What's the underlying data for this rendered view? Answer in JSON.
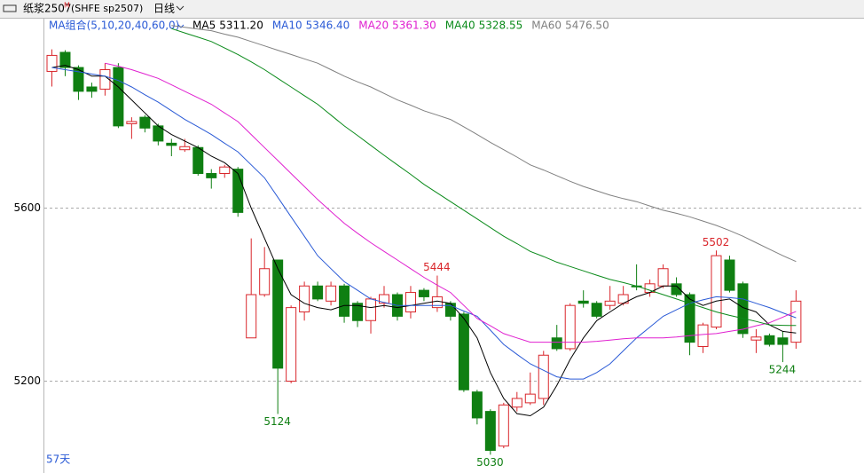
{
  "chart_data": {
    "type": "candlestick",
    "title": "纸浆2507",
    "title_mark": "M",
    "symbol": "(SHFE sp2507)",
    "period": "日线",
    "ma_group": "MA组合(5,10,20,40,60,0)",
    "days_label": "57天",
    "ylim": [
      5000,
      6040
    ],
    "yticks": [
      5200,
      5600
    ],
    "grid": true,
    "up_color": "#d9262b",
    "down_color": "#0f7f12",
    "open": [
      5916,
      5960,
      5925,
      5880,
      5875,
      5925,
      5795,
      5810,
      5790,
      5750,
      5735,
      5740,
      5680,
      5680,
      5690,
      5300,
      5400,
      5480,
      5200,
      5360,
      5420,
      5385,
      5420,
      5380,
      5340,
      5380,
      5400,
      5360,
      5410,
      5370,
      5380,
      5355,
      5175,
      5130,
      5050,
      5140,
      5150,
      5160,
      5300,
      5275,
      5385,
      5380,
      5375,
      5380,
      5420,
      5405,
      5420,
      5425,
      5400,
      5280,
      5325,
      5480,
      5425,
      5295,
      5305,
      5300,
      5290
    ],
    "high": [
      5967,
      5965,
      5930,
      5890,
      5935,
      5935,
      5810,
      5815,
      5795,
      5760,
      5760,
      5745,
      5690,
      5700,
      5695,
      5530,
      5510,
      5480,
      5375,
      5430,
      5430,
      5430,
      5425,
      5385,
      5395,
      5420,
      5405,
      5420,
      5415,
      5444,
      5385,
      5360,
      5180,
      5135,
      5150,
      5175,
      5220,
      5270,
      5330,
      5380,
      5410,
      5385,
      5420,
      5420,
      5470,
      5435,
      5470,
      5440,
      5405,
      5335,
      5502,
      5490,
      5430,
      5320,
      5310,
      5315,
      5410
    ],
    "low": [
      5881,
      5905,
      5850,
      5855,
      5860,
      5785,
      5760,
      5775,
      5745,
      5720,
      5730,
      5675,
      5645,
      5670,
      5580,
      5300,
      5395,
      5124,
      5195,
      5340,
      5385,
      5375,
      5335,
      5325,
      5310,
      5370,
      5340,
      5345,
      5385,
      5360,
      5340,
      5175,
      5100,
      5030,
      5045,
      5130,
      5145,
      5145,
      5270,
      5270,
      5370,
      5345,
      5365,
      5375,
      5410,
      5395,
      5415,
      5395,
      5260,
      5265,
      5320,
      5405,
      5300,
      5265,
      5280,
      5244,
      5275
    ],
    "close": [
      5953,
      5925,
      5870,
      5870,
      5920,
      5790,
      5800,
      5785,
      5755,
      5745,
      5742,
      5680,
      5670,
      5695,
      5590,
      5400,
      5460,
      5230,
      5370,
      5420,
      5390,
      5420,
      5350,
      5340,
      5390,
      5400,
      5350,
      5405,
      5395,
      5395,
      5350,
      5180,
      5115,
      5040,
      5145,
      5160,
      5170,
      5260,
      5275,
      5375,
      5380,
      5350,
      5385,
      5400,
      5418,
      5425,
      5460,
      5400,
      5290,
      5330,
      5490,
      5410,
      5310,
      5302,
      5285,
      5285,
      5385
    ],
    "high_labels": [
      29,
      50
    ],
    "low_labels": [
      17,
      33,
      55
    ],
    "series": [
      {
        "name": "MA5",
        "value_label": "5311.20",
        "color": "#000000",
        "values": [
          5925,
          5930,
          5920,
          5905,
          5905,
          5880,
          5850,
          5820,
          5790,
          5770,
          5755,
          5740,
          5720,
          5705,
          5680,
          5600,
          5530,
          5460,
          5400,
          5380,
          5370,
          5365,
          5375,
          5375,
          5370,
          5375,
          5370,
          5375,
          5380,
          5385,
          5380,
          5345,
          5300,
          5220,
          5160,
          5125,
          5120,
          5140,
          5190,
          5250,
          5300,
          5340,
          5360,
          5380,
          5395,
          5405,
          5420,
          5420,
          5390,
          5375,
          5385,
          5390,
          5370,
          5360,
          5330,
          5315,
          5311.2
        ]
      },
      {
        "name": "MA10",
        "value_label": "5346.40",
        "color": "#2a5ad6",
        "values": [
          5925,
          5920,
          5915,
          5910,
          5905,
          5895,
          5880,
          5862,
          5845,
          5825,
          5805,
          5788,
          5770,
          5750,
          5730,
          5700,
          5670,
          5625,
          5580,
          5535,
          5490,
          5460,
          5430,
          5410,
          5390,
          5382,
          5375,
          5375,
          5375,
          5375,
          5375,
          5362,
          5350,
          5318,
          5285,
          5262,
          5240,
          5225,
          5210,
          5205,
          5205,
          5220,
          5240,
          5270,
          5300,
          5325,
          5350,
          5365,
          5380,
          5388,
          5395,
          5393,
          5390,
          5380,
          5370,
          5358,
          5346.4
        ]
      },
      {
        "name": "MA20",
        "value_label": "5361.30",
        "color": "#e020d0",
        "values": [
          null,
          null,
          null,
          null,
          5935,
          5928,
          5920,
          5910,
          5900,
          5885,
          5870,
          5855,
          5840,
          5820,
          5800,
          5770,
          5740,
          5710,
          5680,
          5650,
          5620,
          5592,
          5565,
          5542,
          5520,
          5500,
          5480,
          5460,
          5440,
          5422,
          5405,
          5375,
          5345,
          5328,
          5310,
          5300,
          5290,
          5290,
          5290,
          5290,
          5290,
          5292,
          5295,
          5298,
          5300,
          5300,
          5300,
          5302,
          5305,
          5308,
          5310,
          5315,
          5320,
          5328,
          5335,
          5348,
          5361.3
        ]
      },
      {
        "name": "MA40",
        "value_label": "5328.55",
        "color": "#0a8a1a",
        "values": [
          null,
          null,
          null,
          null,
          null,
          null,
          null,
          null,
          null,
          6015,
          6005,
          5995,
          5985,
          5970,
          5955,
          5938,
          5920,
          5900,
          5880,
          5860,
          5840,
          5815,
          5790,
          5768,
          5745,
          5722,
          5700,
          5678,
          5655,
          5635,
          5615,
          5595,
          5575,
          5555,
          5535,
          5518,
          5500,
          5488,
          5475,
          5465,
          5455,
          5445,
          5435,
          5428,
          5420,
          5410,
          5400,
          5390,
          5380,
          5370,
          5360,
          5352,
          5345,
          5338,
          5330,
          5329,
          5328.55
        ]
      },
      {
        "name": "MA60",
        "value_label": "5476.50",
        "color": "#808080",
        "values": [
          null,
          null,
          null,
          null,
          null,
          null,
          null,
          null,
          null,
          6022,
          6018,
          6014,
          6010,
          6002,
          5995,
          5985,
          5975,
          5965,
          5955,
          5945,
          5935,
          5920,
          5905,
          5892,
          5880,
          5865,
          5850,
          5838,
          5825,
          5815,
          5805,
          5788,
          5770,
          5752,
          5735,
          5718,
          5700,
          5688,
          5675,
          5662,
          5650,
          5640,
          5630,
          5622,
          5615,
          5605,
          5595,
          5588,
          5580,
          5570,
          5560,
          5548,
          5535,
          5520,
          5505,
          5490,
          5476.5
        ]
      }
    ]
  }
}
